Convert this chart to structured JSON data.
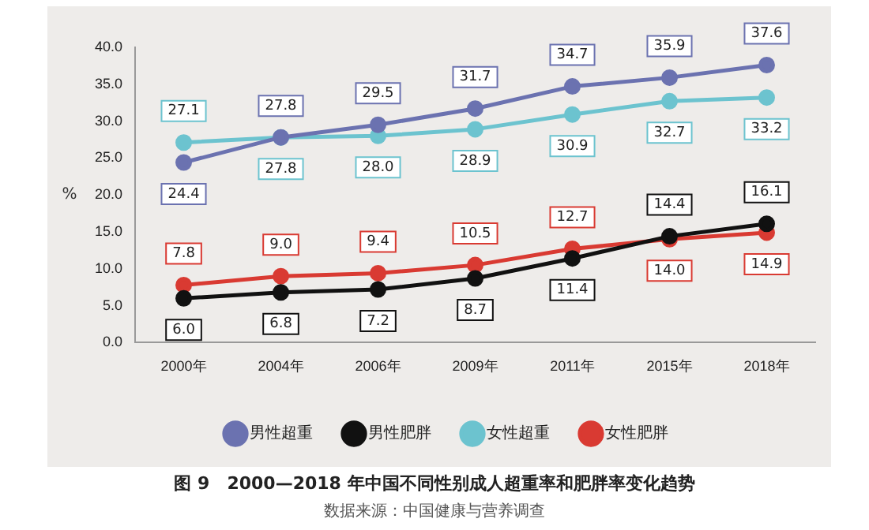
{
  "chart_data": {
    "type": "line",
    "title": "图 9　2000—2018 年中国不同性别成人超重率和肥胖率变化趋势",
    "annotations": [
      "数据来源：中国健康与营养调查"
    ],
    "ylabel": "%",
    "categories": [
      "2000年",
      "2004年",
      "2006年",
      "2009年",
      "2011年",
      "2015年",
      "2018年"
    ],
    "series": [
      {
        "name": "男性超重",
        "color": "#6b72b0",
        "values": [
          24.4,
          27.8,
          29.5,
          31.7,
          34.7,
          35.9,
          37.6
        ],
        "value_labels": [
          "24.4",
          "27.8",
          "29.5",
          "31.7",
          "34.7",
          "35.9",
          "37.6"
        ]
      },
      {
        "name": "男性肥胖",
        "color": "#111111",
        "values": [
          6.0,
          6.8,
          7.2,
          8.7,
          11.4,
          14.4,
          16.1
        ],
        "value_labels": [
          "6.0",
          "6.8",
          "7.2",
          "8.7",
          "11.4",
          "14.4",
          "16.1"
        ]
      },
      {
        "name": "女性超重",
        "color": "#6cc3cf",
        "values": [
          27.1,
          27.8,
          28.0,
          28.9,
          30.9,
          32.7,
          33.2
        ],
        "value_labels": [
          "27.1",
          "27.8",
          "28.0",
          "28.9",
          "30.9",
          "32.7",
          "33.2"
        ]
      },
      {
        "name": "女性肥胖",
        "color": "#d93a32",
        "values": [
          7.8,
          9.0,
          9.4,
          10.5,
          12.7,
          14.0,
          14.9
        ],
        "value_labels": [
          "7.8",
          "9.0",
          "9.4",
          "10.5",
          "12.7",
          "14.0",
          "14.9"
        ]
      }
    ],
    "ylim": [
      0,
      40
    ],
    "yticks": [
      {
        "value": 0,
        "label": "0.0"
      },
      {
        "value": 5,
        "label": "5.0"
      },
      {
        "value": 10,
        "label": "10.0"
      },
      {
        "value": 15,
        "label": "15.0"
      },
      {
        "value": 20,
        "label": "20.0"
      },
      {
        "value": 25,
        "label": "25.0"
      },
      {
        "value": 30,
        "label": "30.0"
      },
      {
        "value": 35,
        "label": "35.0"
      },
      {
        "value": 40,
        "label": "40.0"
      }
    ],
    "grid": false,
    "legend": "bottom",
    "marker": "circle",
    "line_style": "solid"
  }
}
